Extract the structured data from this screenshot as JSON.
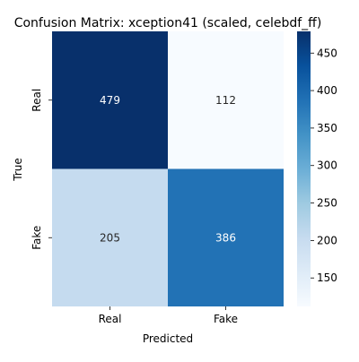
{
  "chart_data": {
    "type": "heatmap",
    "title": "Confusion Matrix: xception41 (scaled, celebdf_ff)",
    "xlabel": "Predicted",
    "ylabel": "True",
    "x_categories": [
      "Real",
      "Fake"
    ],
    "y_categories": [
      "Real",
      "Fake"
    ],
    "values": [
      [
        479,
        112
      ],
      [
        205,
        386
      ]
    ],
    "colormap": "Blues",
    "colorbar": {
      "vmin": 112,
      "vmax": 479,
      "ticks": [
        150,
        200,
        250,
        300,
        350,
        400,
        450
      ]
    },
    "grid": false,
    "legend": "colorbar-right"
  }
}
